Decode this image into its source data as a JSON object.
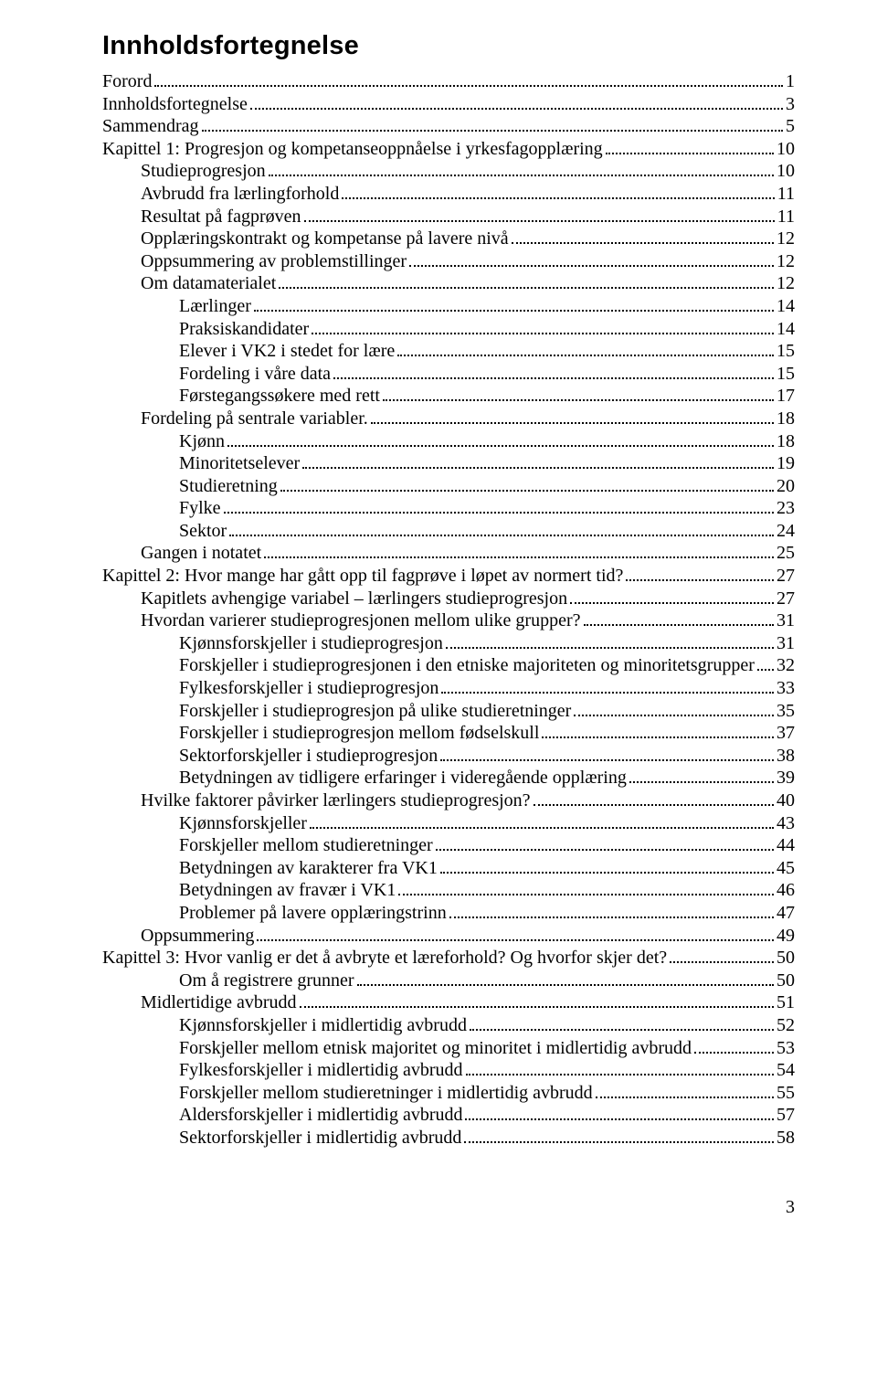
{
  "title": "Innholdsfortegnelse",
  "page_number": "3",
  "toc": [
    {
      "indent": 0,
      "label": "Forord",
      "page": "1"
    },
    {
      "indent": 0,
      "label": "Innholdsfortegnelse",
      "page": "3"
    },
    {
      "indent": 0,
      "label": "Sammendrag",
      "page": "5"
    },
    {
      "indent": 0,
      "label": "Kapittel 1: Progresjon og kompetanseoppnåelse i yrkesfagopplæring",
      "page": "10"
    },
    {
      "indent": 1,
      "label": "Studieprogresjon",
      "page": "10"
    },
    {
      "indent": 1,
      "label": "Avbrudd fra lærlingforhold",
      "page": "11"
    },
    {
      "indent": 1,
      "label": "Resultat på fagprøven",
      "page": "11"
    },
    {
      "indent": 1,
      "label": "Opplæringskontrakt og kompetanse på lavere nivå",
      "page": "12"
    },
    {
      "indent": 1,
      "label": "Oppsummering av problemstillinger",
      "page": "12"
    },
    {
      "indent": 1,
      "label": "Om datamaterialet",
      "page": "12"
    },
    {
      "indent": 2,
      "label": "Lærlinger",
      "page": "14"
    },
    {
      "indent": 2,
      "label": "Praksiskandidater",
      "page": "14"
    },
    {
      "indent": 2,
      "label": "Elever i VK2 i stedet for lære",
      "page": "15"
    },
    {
      "indent": 2,
      "label": "Fordeling i våre data",
      "page": "15"
    },
    {
      "indent": 2,
      "label": "Førstegangssøkere med rett",
      "page": "17"
    },
    {
      "indent": 1,
      "label": "Fordeling på sentrale variabler.",
      "page": "18"
    },
    {
      "indent": 2,
      "label": "Kjønn",
      "page": "18"
    },
    {
      "indent": 2,
      "label": "Minoritetselever",
      "page": "19"
    },
    {
      "indent": 2,
      "label": "Studieretning",
      "page": "20"
    },
    {
      "indent": 2,
      "label": "Fylke",
      "page": "23"
    },
    {
      "indent": 2,
      "label": "Sektor",
      "page": "24"
    },
    {
      "indent": 1,
      "label": "Gangen i notatet",
      "page": "25"
    },
    {
      "indent": 0,
      "label": "Kapittel 2: Hvor mange har gått opp til fagprøve i løpet av normert tid?",
      "page": "27"
    },
    {
      "indent": 1,
      "label": "Kapitlets avhengige variabel – lærlingers studieprogresjon",
      "page": "27"
    },
    {
      "indent": 1,
      "label": "Hvordan varierer studieprogresjonen mellom ulike grupper?",
      "page": "31"
    },
    {
      "indent": 2,
      "label": "Kjønnsforskjeller i studieprogresjon",
      "page": "31"
    },
    {
      "indent": 2,
      "label": "Forskjeller i studieprogresjonen i den etniske majoriteten og minoritetsgrupper",
      "page": "32"
    },
    {
      "indent": 2,
      "label": "Fylkesforskjeller i studieprogresjon",
      "page": "33"
    },
    {
      "indent": 2,
      "label": "Forskjeller i studieprogresjon på ulike studieretninger",
      "page": "35"
    },
    {
      "indent": 2,
      "label": "Forskjeller i studieprogresjon mellom fødselskull",
      "page": "37"
    },
    {
      "indent": 2,
      "label": "Sektorforskjeller i studieprogresjon",
      "page": "38"
    },
    {
      "indent": 2,
      "label": "Betydningen av tidligere erfaringer i videregående opplæring",
      "page": "39"
    },
    {
      "indent": 1,
      "label": "Hvilke faktorer påvirker lærlingers studieprogresjon?",
      "page": "40"
    },
    {
      "indent": 2,
      "label": "Kjønnsforskjeller",
      "page": "43"
    },
    {
      "indent": 2,
      "label": "Forskjeller mellom studieretninger",
      "page": "44"
    },
    {
      "indent": 2,
      "label": "Betydningen av karakterer fra VK1",
      "page": "45"
    },
    {
      "indent": 2,
      "label": "Betydningen av fravær i VK1",
      "page": "46"
    },
    {
      "indent": 2,
      "label": "Problemer på lavere opplæringstrinn",
      "page": "47"
    },
    {
      "indent": 1,
      "label": "Oppsummering",
      "page": "49"
    },
    {
      "indent": 0,
      "label": "Kapittel 3: Hvor vanlig er det å avbryte et læreforhold? Og hvorfor skjer det?",
      "page": "50"
    },
    {
      "indent": 2,
      "label": "Om å registrere grunner",
      "page": "50"
    },
    {
      "indent": 1,
      "label": "Midlertidige avbrudd",
      "page": "51"
    },
    {
      "indent": 2,
      "label": "Kjønnsforskjeller i midlertidig avbrudd",
      "page": "52"
    },
    {
      "indent": 2,
      "label": "Forskjeller mellom etnisk majoritet og minoritet i midlertidig avbrudd",
      "page": "53"
    },
    {
      "indent": 2,
      "label": "Fylkesforskjeller i midlertidig avbrudd",
      "page": "54"
    },
    {
      "indent": 2,
      "label": "Forskjeller mellom studieretninger i midlertidig avbrudd",
      "page": "55"
    },
    {
      "indent": 2,
      "label": "Aldersforskjeller i midlertidig avbrudd",
      "page": "57"
    },
    {
      "indent": 2,
      "label": "Sektorforskjeller i midlertidig avbrudd",
      "page": "58"
    }
  ]
}
